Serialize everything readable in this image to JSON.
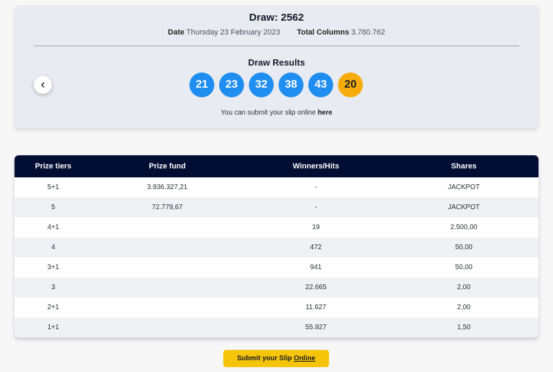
{
  "draw": {
    "title": "Draw: 2562",
    "date_label": "Date",
    "date_value": "Thursday 23 February 2023",
    "columns_label": "Total Columns",
    "columns_value": "3.780.762"
  },
  "results": {
    "title": "Draw Results",
    "numbers": [
      "21",
      "23",
      "32",
      "38",
      "43"
    ],
    "bonus": "20",
    "submit_text": "You can submit your slip online",
    "submit_link": "here"
  },
  "colors": {
    "ball": "#1f8ef0",
    "bonus_ball": "#f6ad0c",
    "table_header": "#010d33",
    "cta": "#f6c50a"
  },
  "table": {
    "headers": [
      "Prize tiers",
      "Prize fund",
      "Winners/Hits",
      "Shares"
    ],
    "rows": [
      [
        "5+1",
        "3.936.327,21",
        "-",
        "JACKPOT"
      ],
      [
        "5",
        "72.779,67",
        "-",
        "JACKPOT"
      ],
      [
        "4+1",
        "",
        "19",
        "2.500,00"
      ],
      [
        "4",
        "",
        "472",
        "50,00"
      ],
      [
        "3+1",
        "",
        "941",
        "50,00"
      ],
      [
        "3",
        "",
        "22.665",
        "2,00"
      ],
      [
        "2+1",
        "",
        "11.627",
        "2,00"
      ],
      [
        "1+1",
        "",
        "55.927",
        "1,50"
      ]
    ]
  },
  "cta": {
    "label": "Submit your Slip",
    "link": "Online"
  },
  "icons": {
    "prev": "chevron-left-icon"
  }
}
